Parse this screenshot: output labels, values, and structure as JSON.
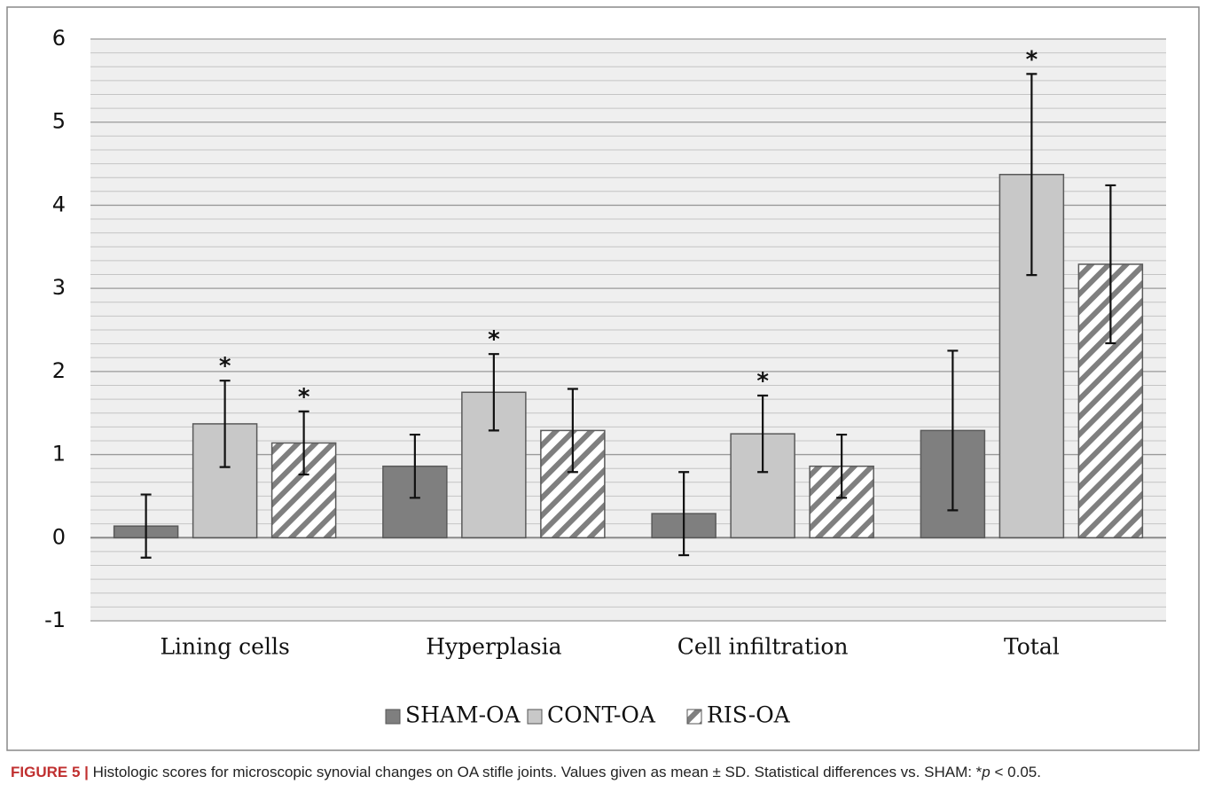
{
  "chart_data": {
    "type": "bar",
    "categories": [
      "Lining cells",
      "Hyperplasia",
      "Cell infiltration",
      "Total"
    ],
    "series": [
      {
        "name": "SHAM-OA",
        "color": "#7f7f7f",
        "values": [
          0.14,
          0.86,
          0.29,
          1.29
        ],
        "errors": [
          0.38,
          0.38,
          0.5,
          0.96
        ]
      },
      {
        "name": "CONT-OA",
        "color": "#c8c8c8",
        "values": [
          1.37,
          1.75,
          1.25,
          4.37
        ],
        "errors": [
          0.52,
          0.46,
          0.46,
          1.21
        ],
        "significance": [
          "*",
          "*",
          "*",
          "*"
        ]
      },
      {
        "name": "RIS-OA",
        "color": "#7f7f7f",
        "pattern": "hatch",
        "values": [
          1.14,
          1.29,
          0.86,
          3.29
        ],
        "errors": [
          0.38,
          0.5,
          0.38,
          0.95
        ],
        "significance": [
          "*",
          null,
          null,
          null
        ]
      }
    ],
    "ylim": [
      -1,
      6
    ],
    "yticks": [
      -1,
      0,
      1,
      2,
      3,
      4,
      5,
      6
    ],
    "grid": true,
    "minor_grid_per_major": 6,
    "legend": "bottom"
  },
  "caption": {
    "label": "FIGURE 5 |",
    "text": " Histologic scores for microscopic synovial changes on OA stifle joints. Values given as mean ± SD. Statistical differences vs. SHAM: *",
    "italic": "p",
    "rest": " < 0.05."
  }
}
